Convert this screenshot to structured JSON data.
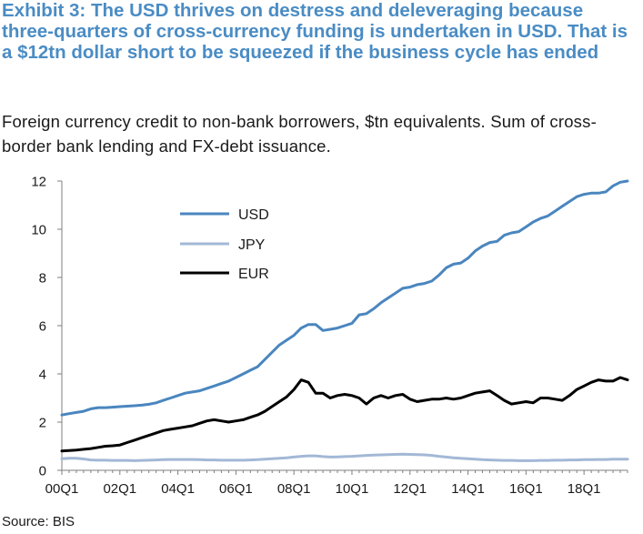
{
  "title": "Exhibit 3: The USD thrives on destress and deleveraging because three-quarters of cross-currency funding is undertaken in USD. That is a $12tn dollar short to be squeezed if the business cycle has ended",
  "subtitle": "Foreign currency credit to non-bank borrowers, $tn equivalents. Sum of cross-border bank lending and FX-debt issuance.",
  "source": "Source: BIS",
  "chart_data": {
    "type": "line",
    "title": "",
    "xlabel": "",
    "ylabel": "",
    "ylim": [
      0,
      12
    ],
    "yticks": [
      "0",
      "2",
      "4",
      "6",
      "8",
      "10",
      "12"
    ],
    "xlim": [
      0,
      78
    ],
    "xtick_labels": [
      "00Q1",
      "02Q1",
      "04Q1",
      "06Q1",
      "08Q1",
      "10Q1",
      "12Q1",
      "14Q1",
      "16Q1",
      "18Q1"
    ],
    "x_start": "2000Q1",
    "x_end": "2019Q3",
    "frequency": "quarterly",
    "grid": false,
    "legend": "upper-left, inside plot",
    "colors": {
      "USD": "#4a86bf",
      "JPY": "#a3b8d6",
      "EUR": "#000000"
    },
    "series": [
      {
        "name": "USD",
        "values": [
          2.3,
          2.35,
          2.4,
          2.45,
          2.55,
          2.6,
          2.6,
          2.62,
          2.64,
          2.66,
          2.68,
          2.7,
          2.74,
          2.8,
          2.9,
          3.0,
          3.1,
          3.2,
          3.25,
          3.3,
          3.4,
          3.5,
          3.6,
          3.7,
          3.85,
          4.0,
          4.15,
          4.3,
          4.6,
          4.9,
          5.2,
          5.4,
          5.6,
          5.9,
          6.05,
          6.05,
          5.8,
          5.85,
          5.9,
          6.0,
          6.1,
          6.45,
          6.5,
          6.7,
          6.95,
          7.15,
          7.35,
          7.55,
          7.6,
          7.7,
          7.75,
          7.85,
          8.1,
          8.4,
          8.55,
          8.6,
          8.8,
          9.1,
          9.3,
          9.45,
          9.5,
          9.75,
          9.85,
          9.9,
          10.1,
          10.3,
          10.45,
          10.55,
          10.75,
          10.95,
          11.15,
          11.35,
          11.45,
          11.5,
          11.5,
          11.55,
          11.8,
          11.95,
          12.0
        ]
      },
      {
        "name": "JPY",
        "values": [
          0.48,
          0.5,
          0.5,
          0.47,
          0.43,
          0.42,
          0.42,
          0.41,
          0.41,
          0.41,
          0.4,
          0.41,
          0.42,
          0.43,
          0.44,
          0.45,
          0.45,
          0.45,
          0.45,
          0.44,
          0.43,
          0.43,
          0.42,
          0.42,
          0.42,
          0.42,
          0.43,
          0.44,
          0.46,
          0.48,
          0.5,
          0.52,
          0.55,
          0.58,
          0.6,
          0.6,
          0.57,
          0.55,
          0.56,
          0.57,
          0.58,
          0.6,
          0.62,
          0.63,
          0.64,
          0.65,
          0.66,
          0.67,
          0.66,
          0.65,
          0.64,
          0.62,
          0.58,
          0.55,
          0.52,
          0.5,
          0.48,
          0.46,
          0.44,
          0.43,
          0.42,
          0.41,
          0.41,
          0.4,
          0.4,
          0.4,
          0.41,
          0.41,
          0.42,
          0.42,
          0.43,
          0.43,
          0.44,
          0.44,
          0.45,
          0.45,
          0.46,
          0.46,
          0.46
        ]
      },
      {
        "name": "EUR",
        "values": [
          0.8,
          0.82,
          0.84,
          0.87,
          0.9,
          0.95,
          1.0,
          1.02,
          1.05,
          1.15,
          1.25,
          1.35,
          1.45,
          1.55,
          1.65,
          1.7,
          1.75,
          1.8,
          1.85,
          1.95,
          2.05,
          2.1,
          2.05,
          2.0,
          2.05,
          2.1,
          2.2,
          2.3,
          2.45,
          2.65,
          2.85,
          3.05,
          3.35,
          3.75,
          3.65,
          3.2,
          3.2,
          3.0,
          3.1,
          3.15,
          3.1,
          3.0,
          2.75,
          3.0,
          3.1,
          3.0,
          3.1,
          3.15,
          2.95,
          2.85,
          2.9,
          2.95,
          2.95,
          3.0,
          2.95,
          3.0,
          3.1,
          3.2,
          3.25,
          3.3,
          3.1,
          2.9,
          2.75,
          2.8,
          2.85,
          2.8,
          3.0,
          3.0,
          2.95,
          2.9,
          3.1,
          3.35,
          3.5,
          3.65,
          3.75,
          3.7,
          3.7,
          3.85,
          3.75
        ]
      }
    ]
  }
}
